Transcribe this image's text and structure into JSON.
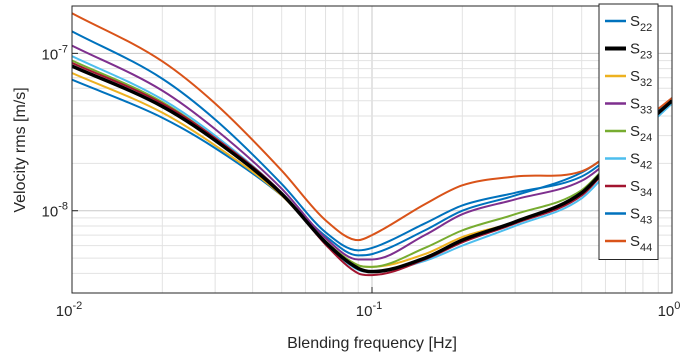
{
  "chart_data": {
    "type": "line",
    "xlabel": "Blending frequency [Hz]",
    "ylabel": "Velocity rms [m/s]",
    "xscale": "log",
    "yscale": "log",
    "xlim": [
      0.01,
      1
    ],
    "ylim": [
      3e-09,
      2e-07
    ],
    "grid": true,
    "minor_grid": true,
    "legend_placement": "top-right",
    "x_ticks": [
      {
        "value": 0.01,
        "base": "10",
        "exp": "-2"
      },
      {
        "value": 0.1,
        "base": "10",
        "exp": "-1"
      },
      {
        "value": 1,
        "base": "10",
        "exp": "0"
      }
    ],
    "y_ticks": [
      {
        "value": 1e-08,
        "base": "10",
        "exp": "-8"
      },
      {
        "value": 1e-07,
        "base": "10",
        "exp": "-7"
      }
    ],
    "x": [
      0.01,
      0.02,
      0.03,
      0.05,
      0.07,
      0.09,
      0.1,
      0.15,
      0.2,
      0.3,
      0.5,
      0.6,
      0.7,
      0.8,
      1.0
    ],
    "series": [
      {
        "name": "S",
        "sub": "22",
        "color": "#0072BD",
        "width": 2,
        "values": [
          6.8e-08,
          3.9e-08,
          2.5e-08,
          1.25e-08,
          6.9e-09,
          5.2e-09,
          5.3e-09,
          7.5e-09,
          1e-08,
          1.25e-08,
          1.75e-08,
          2.2e-08,
          2.8e-08,
          3.5e-08,
          5e-08
        ]
      },
      {
        "name": "S",
        "sub": "23",
        "color": "#000000",
        "width": 3.5,
        "values": [
          8.3e-08,
          4.6e-08,
          2.8e-08,
          1.28e-08,
          6.3e-09,
          4.3e-09,
          4.1e-09,
          5e-09,
          6.5e-09,
          8.5e-09,
          1.3e-08,
          1.85e-08,
          2.6e-08,
          3.4e-08,
          5e-08
        ]
      },
      {
        "name": "S",
        "sub": "32",
        "color": "#EDB120",
        "width": 2,
        "values": [
          7.5e-08,
          4.2e-08,
          2.6e-08,
          1.25e-08,
          6.4e-09,
          4.5e-09,
          4.4e-09,
          5.3e-09,
          6.8e-09,
          8.5e-09,
          1.3e-08,
          1.8e-08,
          2.5e-08,
          3.3e-08,
          4.8e-08
        ]
      },
      {
        "name": "S",
        "sub": "33",
        "color": "#7E2F8E",
        "width": 2,
        "values": [
          1.12e-07,
          5.8e-08,
          3.3e-08,
          1.38e-08,
          6.7e-09,
          4.9e-09,
          4.9e-09,
          7e-09,
          9.5e-09,
          1.18e-08,
          1.55e-08,
          2e-08,
          2.7e-08,
          3.5e-08,
          5e-08
        ]
      },
      {
        "name": "S",
        "sub": "24",
        "color": "#77AC30",
        "width": 2,
        "values": [
          9e-08,
          4.9e-08,
          2.9e-08,
          1.3e-08,
          6.4e-09,
          4.5e-09,
          4.4e-09,
          5.8e-09,
          7.5e-09,
          9.5e-09,
          1.35e-08,
          1.9e-08,
          2.6e-08,
          3.4e-08,
          5e-08
        ]
      },
      {
        "name": "S",
        "sub": "42",
        "color": "#4DBEEE",
        "width": 2,
        "values": [
          9.6e-08,
          5.1e-08,
          3e-08,
          1.3e-08,
          6.2e-09,
          4.2e-09,
          4.1e-09,
          4.8e-09,
          6e-09,
          8e-09,
          1.2e-08,
          1.7e-08,
          2.4e-08,
          3.2e-08,
          4.8e-08
        ]
      },
      {
        "name": "S",
        "sub": "34",
        "color": "#A2142F",
        "width": 2,
        "values": [
          8.7e-08,
          4.8e-08,
          2.9e-08,
          1.3e-08,
          6.1e-09,
          4e-09,
          3.9e-09,
          4.9e-09,
          6.3e-09,
          8.3e-09,
          1.25e-08,
          1.8e-08,
          2.5e-08,
          3.3e-08,
          5e-08
        ]
      },
      {
        "name": "S",
        "sub": "43",
        "color": "#0072BD",
        "width": 2,
        "values": [
          1.38e-07,
          6.9e-08,
          3.8e-08,
          1.48e-08,
          7.3e-09,
          5.6e-09,
          5.8e-09,
          8.3e-09,
          1.08e-08,
          1.3e-08,
          1.65e-08,
          2.1e-08,
          2.8e-08,
          3.6e-08,
          5.2e-08
        ]
      },
      {
        "name": "S",
        "sub": "44",
        "color": "#D95319",
        "width": 2,
        "values": [
          1.8e-07,
          8.9e-08,
          4.8e-08,
          1.8e-08,
          8.7e-09,
          6.5e-09,
          7e-09,
          1.1e-08,
          1.45e-08,
          1.65e-08,
          1.78e-08,
          2.2e-08,
          2.9e-08,
          3.7e-08,
          5.2e-08
        ]
      }
    ]
  }
}
